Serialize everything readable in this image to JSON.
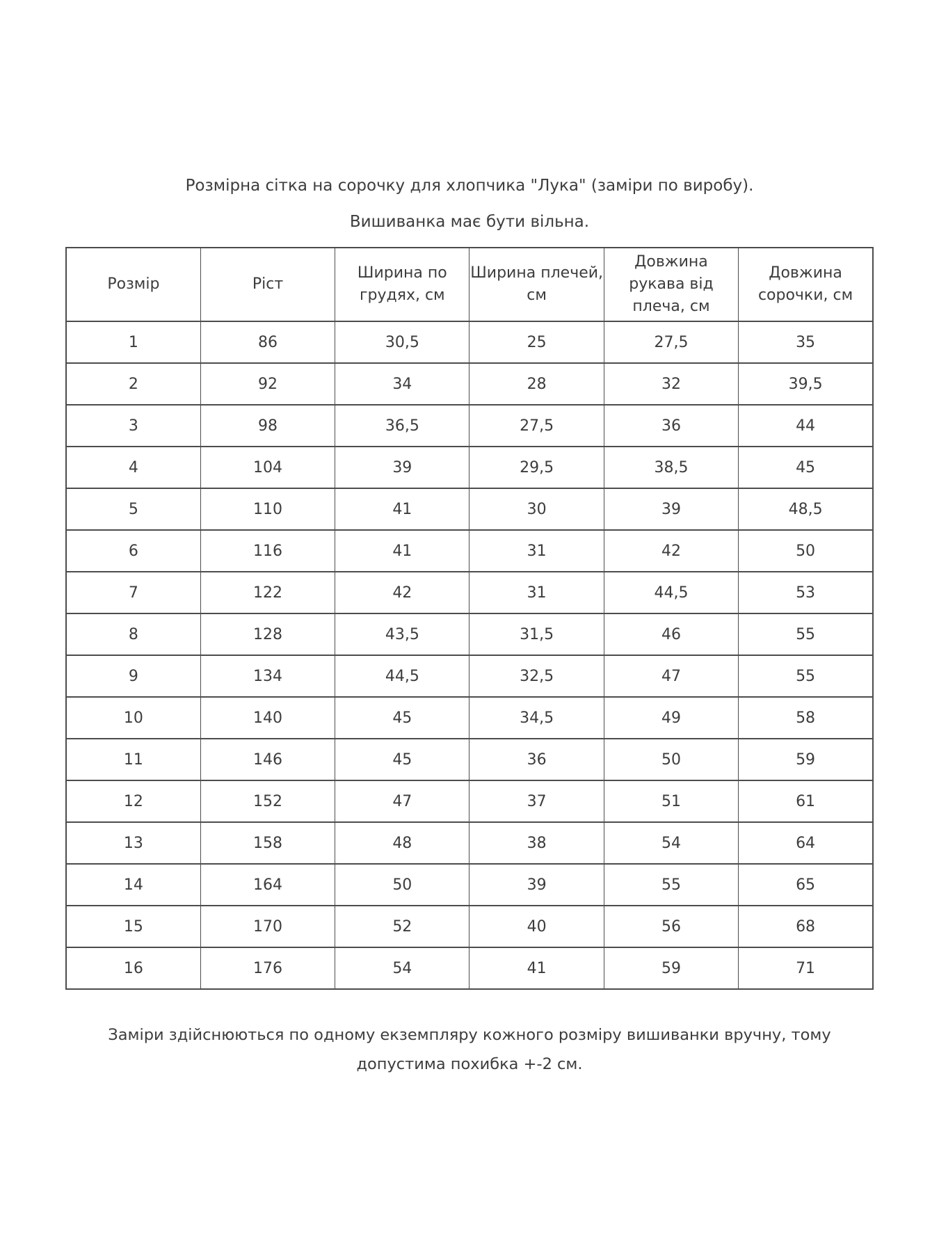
{
  "page": {
    "title": "Розмірна сітка на сорочку для хлопчика \"Лука\" (заміри по виробу).",
    "subtitle": "Вишиванка має бути вільна.",
    "footer_note": "Заміри здійснюються  по одному екземпляру кожного розміру вишиванки вручну, тому допустима похибка +-2 см."
  },
  "colors": {
    "text": "#3d3d3d",
    "table_border": "#4c4c4c",
    "background": "#ffffff"
  },
  "table": {
    "headers": [
      "Розмір",
      "Ріст",
      "Ширина по грудях, см",
      "Ширина плечей, см",
      "Довжина рукава від плеча, см",
      "Довжина сорочки, см"
    ],
    "rows": [
      [
        "1",
        "86",
        "30,5",
        "25",
        "27,5",
        "35"
      ],
      [
        "2",
        "92",
        "34",
        "28",
        "32",
        "39,5"
      ],
      [
        "3",
        "98",
        "36,5",
        "27,5",
        "36",
        "44"
      ],
      [
        "4",
        "104",
        "39",
        "29,5",
        "38,5",
        "45"
      ],
      [
        "5",
        "110",
        "41",
        "30",
        "39",
        "48,5"
      ],
      [
        "6",
        "116",
        "41",
        "31",
        "42",
        "50"
      ],
      [
        "7",
        "122",
        "42",
        "31",
        "44,5",
        "53"
      ],
      [
        "8",
        "128",
        "43,5",
        "31,5",
        "46",
        "55"
      ],
      [
        "9",
        "134",
        "44,5",
        "32,5",
        "47",
        "55"
      ],
      [
        "10",
        "140",
        "45",
        "34,5",
        "49",
        "58"
      ],
      [
        "11",
        "146",
        "45",
        "36",
        "50",
        "59"
      ],
      [
        "12",
        "152",
        "47",
        "37",
        "51",
        "61"
      ],
      [
        "13",
        "158",
        "48",
        "38",
        "54",
        "64"
      ],
      [
        "14",
        "164",
        "50",
        "39",
        "55",
        "65"
      ],
      [
        "15",
        "170",
        "52",
        "40",
        "56",
        "68"
      ],
      [
        "16",
        "176",
        "54",
        "41",
        "59",
        "71"
      ]
    ]
  }
}
